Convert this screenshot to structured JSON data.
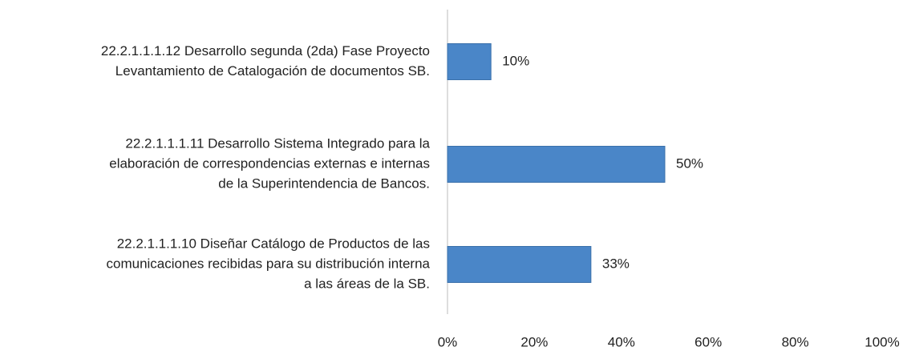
{
  "chart_data": {
    "type": "bar",
    "orientation": "horizontal",
    "categories": [
      [
        "22.2.1.1.1.12 Desarrollo segunda (2da) Fase Proyecto",
        "Levantamiento de Catalogación  de documentos SB."
      ],
      [
        "22.2.1.1.1.11 Desarrollo Sistema Integrado para la",
        "elaboración de correspondencias externas e internas",
        "de la Superintendencia de Bancos."
      ],
      [
        "22.2.1.1.1.10 Diseñar Catálogo de Productos de las",
        "comunicaciones recibidas para su distribución interna",
        "a las áreas de la SB."
      ]
    ],
    "values": [
      10,
      50,
      33
    ],
    "value_labels": [
      "10%",
      "50%",
      "33%"
    ],
    "color": "#4a86c8",
    "xlim": [
      0,
      100
    ],
    "xticks": [
      {
        "value": 0,
        "label": "0%"
      },
      {
        "value": 20,
        "label": "20%"
      },
      {
        "value": 40,
        "label": "40%"
      },
      {
        "value": 60,
        "label": "60%"
      },
      {
        "value": 80,
        "label": "80%"
      },
      {
        "value": 100,
        "label": "100%"
      }
    ],
    "grid": false
  }
}
